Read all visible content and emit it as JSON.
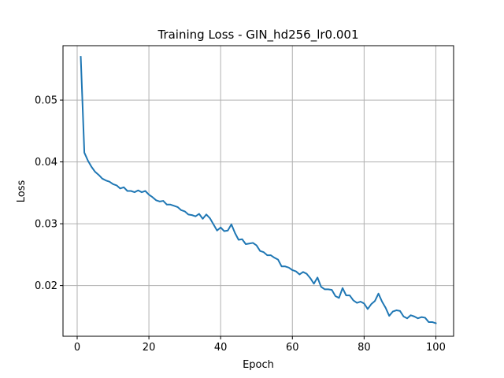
{
  "chart_data": {
    "type": "line",
    "title": "Training Loss - GIN_hd256_lr0.001",
    "xlabel": "Epoch",
    "ylabel": "Loss",
    "xlim": [
      -3.95,
      104.95
    ],
    "ylim": [
      0.0118,
      0.0588
    ],
    "xticks": [
      0,
      20,
      40,
      60,
      80,
      100
    ],
    "yticks": [
      0.02,
      0.03,
      0.04,
      0.05
    ],
    "xtick_labels": [
      "0",
      "20",
      "40",
      "60",
      "80",
      "100"
    ],
    "ytick_labels": [
      "0.02",
      "0.03",
      "0.04",
      "0.05"
    ],
    "grid": true,
    "line_color": "#1f77b4",
    "series": [
      {
        "x": [
          1,
          2,
          3,
          4,
          5,
          6,
          7,
          8,
          9,
          10,
          11,
          12,
          13,
          14,
          15,
          16,
          17,
          18,
          19,
          20,
          21,
          22,
          23,
          24,
          25,
          26,
          27,
          28,
          29,
          30,
          31,
          32,
          33,
          34,
          35,
          36,
          37,
          38,
          39,
          40,
          41,
          42,
          43,
          44,
          45,
          46,
          47,
          48,
          49,
          50,
          51,
          52,
          53,
          54,
          55,
          56,
          57,
          58,
          59,
          60,
          61,
          62,
          63,
          64,
          65,
          66,
          67,
          68,
          69,
          70,
          71,
          72,
          73,
          74,
          75,
          76,
          77,
          78,
          79,
          80,
          81,
          82,
          83,
          84,
          85,
          86,
          87,
          88,
          89,
          90,
          91,
          92,
          93,
          94,
          95,
          96,
          97,
          98,
          99,
          100
        ],
        "y": [
          0.057,
          0.0415,
          0.0402,
          0.0392,
          0.0384,
          0.0379,
          0.0373,
          0.037,
          0.0368,
          0.0364,
          0.0362,
          0.0357,
          0.0359,
          0.0353,
          0.0353,
          0.0351,
          0.0354,
          0.0351,
          0.0353,
          0.0347,
          0.0343,
          0.0338,
          0.0336,
          0.0337,
          0.0331,
          0.0331,
          0.0329,
          0.0327,
          0.0322,
          0.032,
          0.0315,
          0.0314,
          0.0312,
          0.0316,
          0.0308,
          0.0315,
          0.0309,
          0.0299,
          0.0289,
          0.0294,
          0.0288,
          0.0289,
          0.0299,
          0.0285,
          0.0274,
          0.0275,
          0.0267,
          0.0268,
          0.0269,
          0.0265,
          0.0256,
          0.0254,
          0.0249,
          0.0249,
          0.0245,
          0.0242,
          0.0231,
          0.0231,
          0.0229,
          0.0225,
          0.0223,
          0.0218,
          0.0222,
          0.0219,
          0.0212,
          0.0203,
          0.0213,
          0.0198,
          0.0194,
          0.0194,
          0.0193,
          0.0183,
          0.018,
          0.0196,
          0.0184,
          0.0184,
          0.0176,
          0.0172,
          0.0174,
          0.0171,
          0.0162,
          0.017,
          0.0175,
          0.0187,
          0.0174,
          0.0164,
          0.0151,
          0.0158,
          0.016,
          0.0159,
          0.015,
          0.0147,
          0.0152,
          0.015,
          0.0147,
          0.0149,
          0.0148,
          0.0141,
          0.0141,
          0.0139
        ]
      }
    ]
  }
}
